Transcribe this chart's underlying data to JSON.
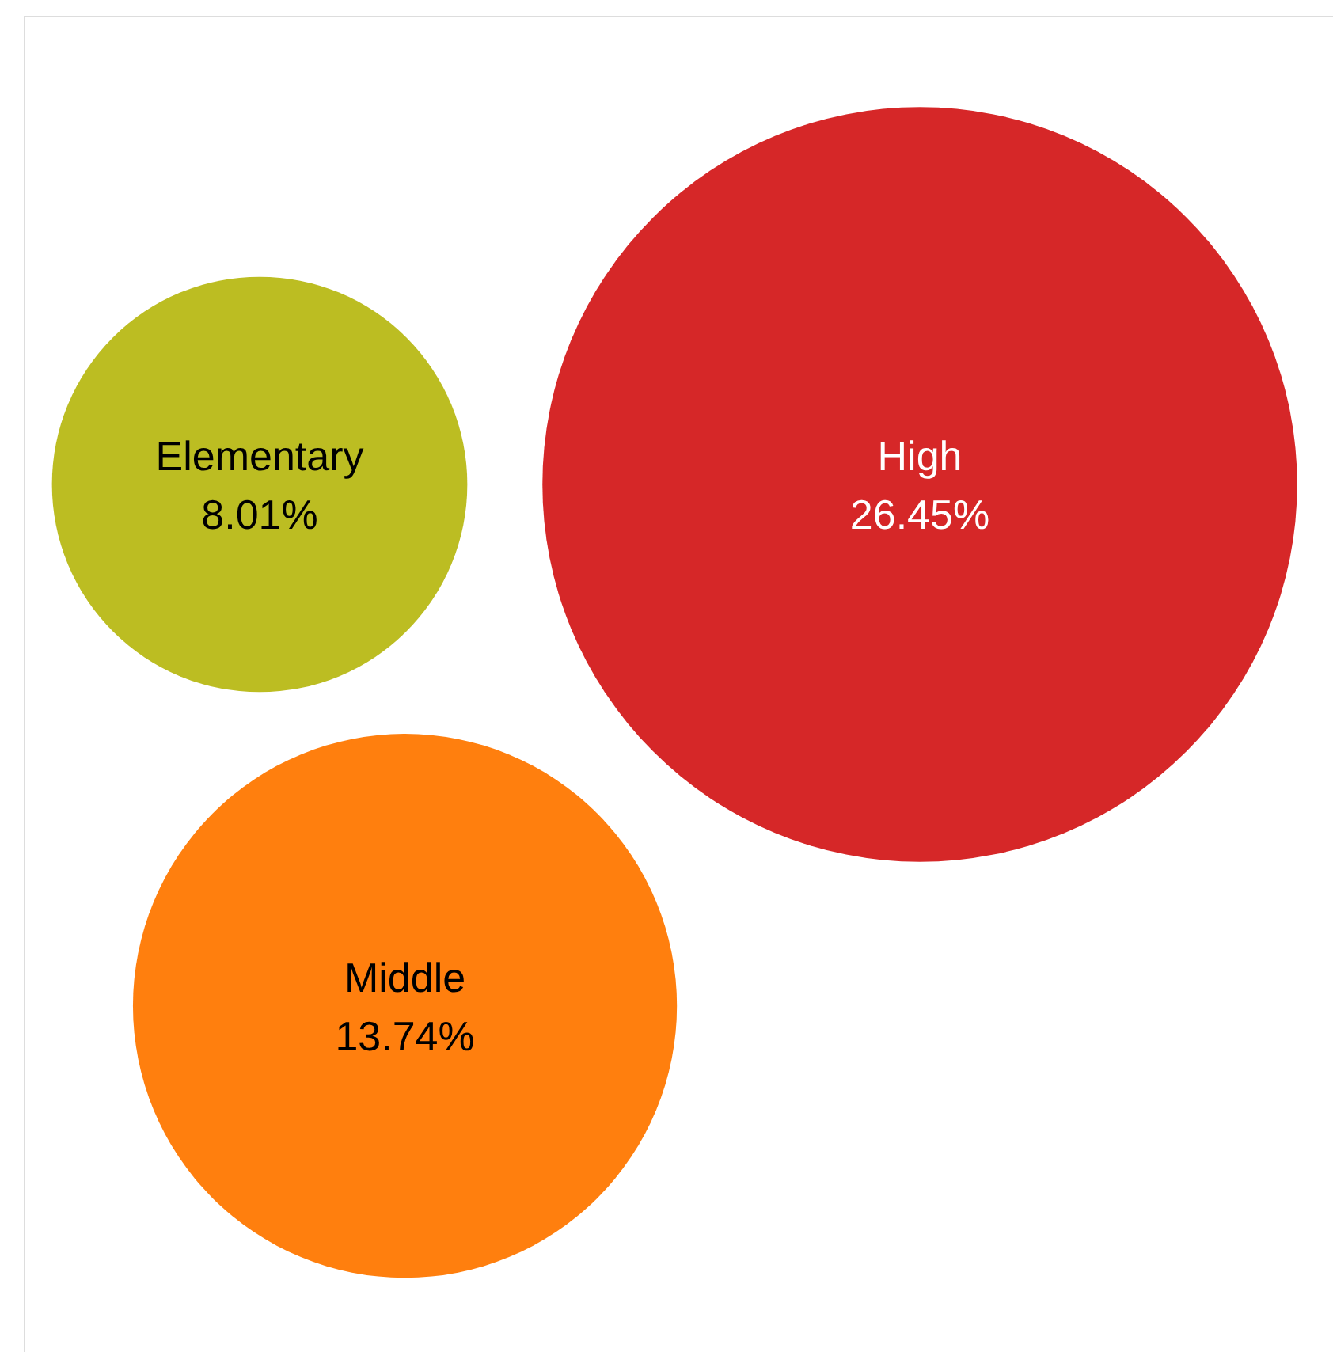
{
  "chart_data": {
    "type": "other",
    "categories": [
      "Elementary",
      "High",
      "Middle"
    ],
    "values": [
      8.01,
      26.45,
      13.74
    ],
    "value_labels": [
      "8.01%",
      "26.45%",
      "13.74%"
    ],
    "colors": [
      "#bcbd22",
      "#d62728",
      "#ff7f0e"
    ]
  }
}
